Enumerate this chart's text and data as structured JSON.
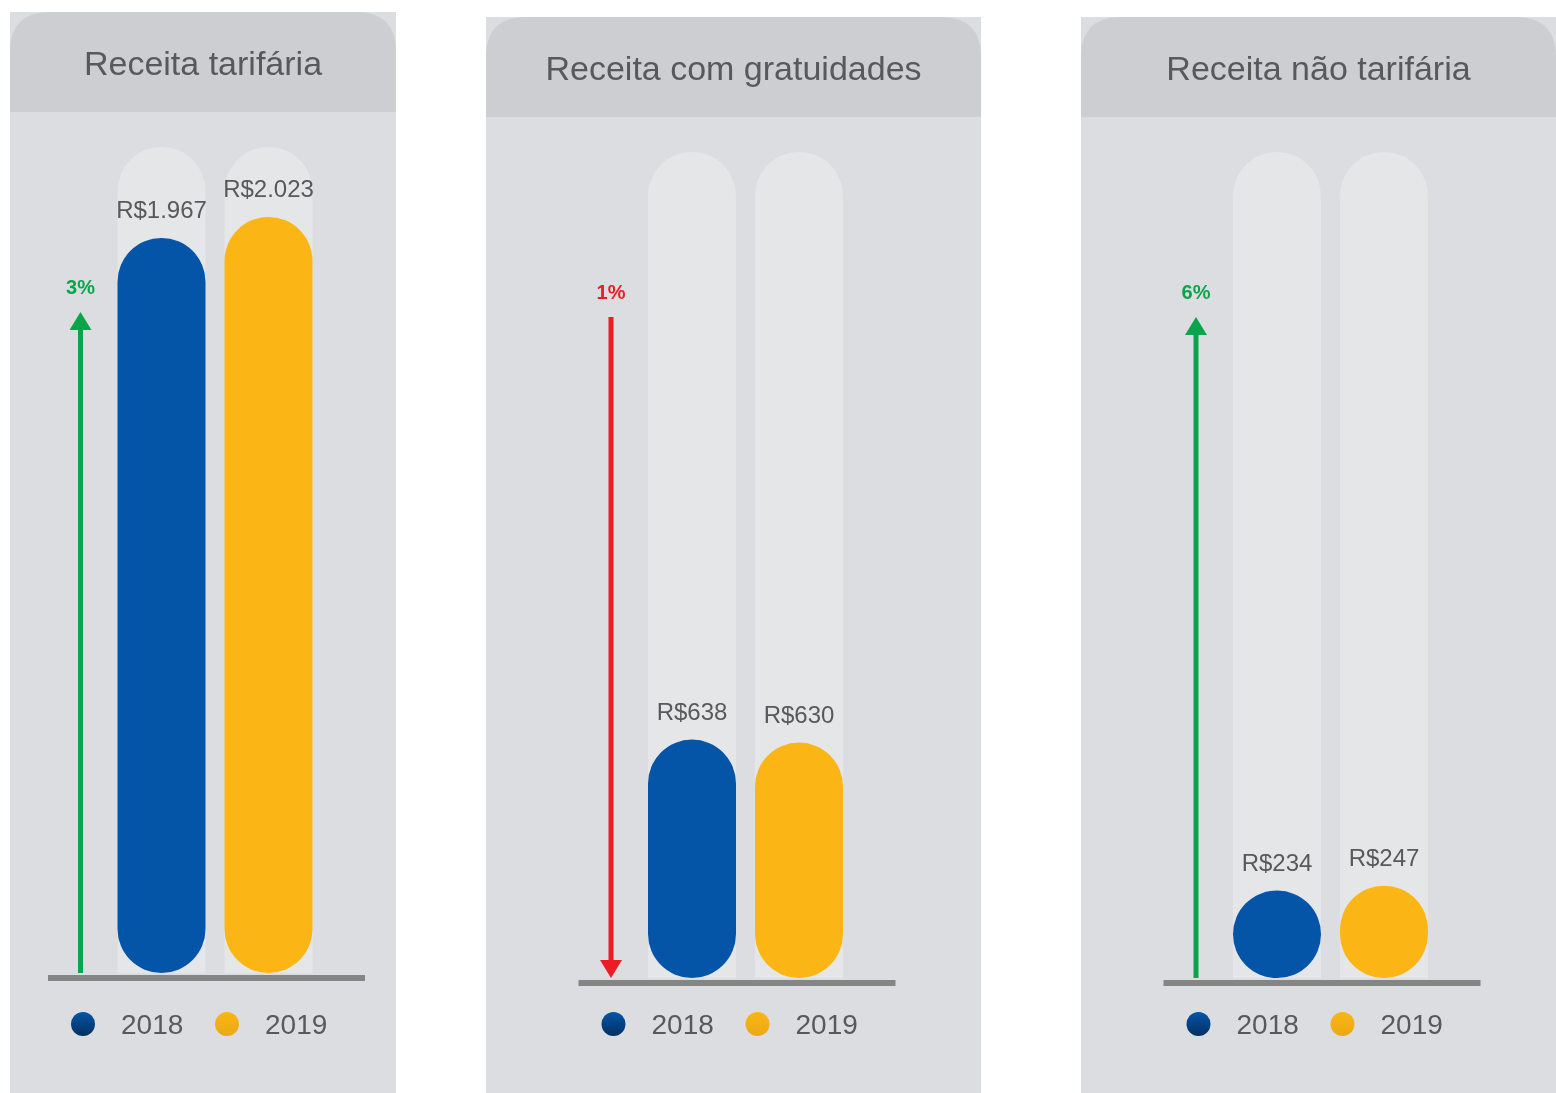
{
  "chart_data": [
    {
      "type": "bar",
      "title": "Receita tarifária",
      "categories": [
        null
      ],
      "legend": "bottom",
      "annotations": [
        "3%"
      ],
      "series": [
        {
          "name": "2018",
          "color": "#0455a8",
          "values": [
            1967
          ],
          "value_labels": [
            "R$1.967"
          ]
        },
        {
          "name": "2019",
          "color": "#fbb515",
          "values": [
            2023
          ],
          "value_labels": [
            "R$2.023"
          ]
        }
      ]
    },
    {
      "type": "bar",
      "title": "Receita com gratuidades",
      "categories": [
        null
      ],
      "legend": "bottom",
      "annotations": [
        "1%"
      ],
      "series": [
        {
          "name": "2018",
          "color": "#0455a8",
          "values": [
            638
          ],
          "value_labels": [
            "R$638"
          ]
        },
        {
          "name": "2019",
          "color": "#fbb515",
          "values": [
            630
          ],
          "value_labels": [
            "R$630"
          ]
        }
      ]
    },
    {
      "type": "bar",
      "title": "Receita não tarifária",
      "categories": [
        null
      ],
      "legend": "bottom",
      "annotations": [
        "6%"
      ],
      "series": [
        {
          "name": "2018",
          "color": "#0455a8",
          "values": [
            234
          ],
          "value_labels": [
            "R$234"
          ]
        },
        {
          "name": "2019",
          "color": "#fbb515",
          "values": [
            247
          ],
          "value_labels": [
            "R$247"
          ]
        }
      ]
    }
  ]
}
